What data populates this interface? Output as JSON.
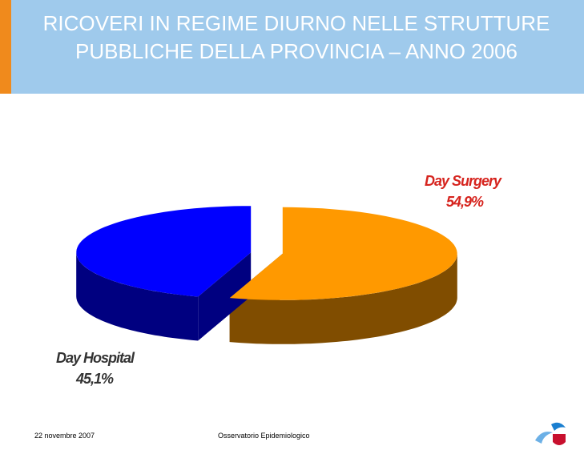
{
  "chart_data": {
    "type": "pie",
    "title": "RICOVERI IN REGIME DIURNO NELLE STRUTTURE PUBBLICHE DELLA PROVINCIA – ANNO 2006",
    "categories": [
      "Day Surgery",
      "Day Hospital"
    ],
    "values": [
      54.9,
      45.1
    ],
    "value_labels": [
      "54,9%",
      "45,1%"
    ],
    "colors": [
      "#ff9900",
      "#0000ff"
    ]
  },
  "footer": {
    "date": "22 novembre 2007",
    "source": "Osservatorio Epidemiologico"
  }
}
